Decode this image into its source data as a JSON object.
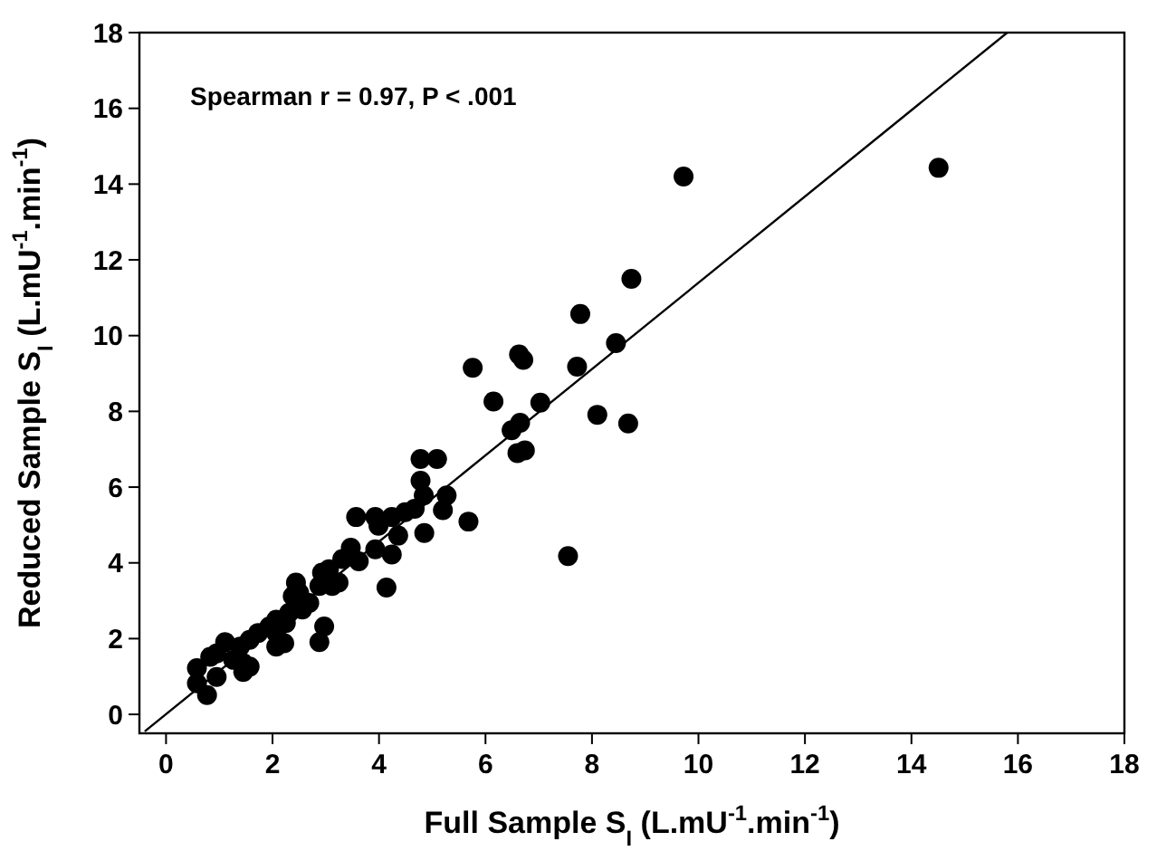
{
  "chart_data": {
    "type": "scatter",
    "xlabel": "Full Sample S$_{I}$ (L.mU$^{-1}$.min$^{-1}$)",
    "ylabel": "Reduced Sample S$_{I}$ (L.mU$^{-1}$.min$^{-1}$)",
    "xlim": [
      -0.5,
      18
    ],
    "ylim": [
      -0.5,
      18
    ],
    "xticks": [
      0,
      2,
      4,
      6,
      8,
      10,
      12,
      14,
      16,
      18
    ],
    "yticks": [
      0,
      2,
      4,
      6,
      8,
      10,
      12,
      14,
      16,
      18
    ],
    "grid": false,
    "annotations": [
      "Spearman r = 0.97, P < .001"
    ],
    "series": [
      {
        "color": "#000000",
        "marker": "circle",
        "x": [
          9.72,
          14.51,
          8.74,
          7.78,
          8.45,
          5.76,
          6.63,
          6.71,
          7.72,
          6.15,
          7.03,
          8.1,
          8.68,
          6.49,
          6.65,
          6.6,
          6.74,
          7.55,
          4.78,
          5.09,
          4.78,
          4.84,
          5.27,
          5.2,
          5.68,
          4.85,
          4.67,
          4.49,
          3.57,
          3.93,
          4.24,
          3.99,
          4.36,
          4.24,
          4.14,
          3.93,
          3.62,
          3.47,
          3.31,
          3.06,
          2.93,
          3.24,
          3.12,
          2.88,
          2.69,
          2.5,
          2.38,
          2.56,
          2.31,
          2.25,
          2.07,
          2.07,
          2.22,
          2.07,
          1.94,
          2.97,
          2.88,
          1.73,
          1.57,
          1.39,
          1.11,
          0.95,
          0.83,
          1.26,
          1.45,
          1.57,
          1.45,
          0.95,
          0.58,
          0.58,
          0.77,
          2.44
        ],
        "values": [
          14.2,
          14.43,
          11.5,
          10.57,
          9.8,
          9.15,
          9.5,
          9.36,
          9.18,
          8.26,
          8.23,
          7.91,
          7.68,
          7.5,
          7.7,
          6.9,
          6.97,
          4.18,
          6.74,
          6.74,
          6.17,
          5.78,
          5.78,
          5.39,
          5.09,
          4.79,
          5.43,
          5.34,
          5.21,
          5.21,
          5.21,
          4.98,
          4.72,
          4.22,
          3.35,
          4.36,
          4.04,
          4.4,
          4.1,
          3.83,
          3.74,
          3.48,
          3.39,
          3.39,
          2.94,
          3.21,
          3.12,
          2.77,
          2.68,
          2.41,
          2.5,
          2.15,
          1.88,
          1.79,
          2.32,
          2.32,
          1.91,
          2.15,
          1.97,
          1.79,
          1.91,
          1.61,
          1.52,
          1.44,
          1.35,
          1.26,
          1.12,
          0.99,
          1.22,
          0.82,
          0.51,
          3.48
        ]
      },
      {
        "type": "line",
        "color": "#000000",
        "x": [
          -0.4,
          15.8
        ],
        "values": [
          -0.45,
          18
        ]
      }
    ]
  }
}
